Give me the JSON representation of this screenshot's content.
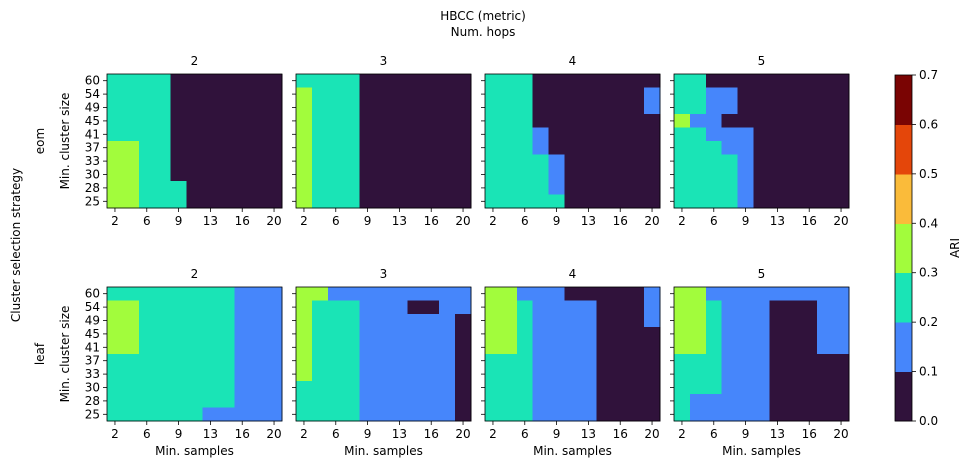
{
  "figure": {
    "title_line1": "HBCC (metric)",
    "title_line2": "Num. hops",
    "row_axis_label": "Cluster selection strategy"
  },
  "chart_data": {
    "type": "heatmap",
    "title": "HBCC (metric)",
    "subtitle": "Num. hops",
    "xlabel": "Min. samples",
    "ylabel": "Min. cluster size",
    "x_ticks": [
      "2",
      "6",
      "9",
      "13",
      "16",
      "20"
    ],
    "y_ticks": [
      "25",
      "28",
      "30",
      "33",
      "37",
      "41",
      "45",
      "49",
      "54",
      "60"
    ],
    "x_values": [
      2,
      4,
      6,
      8,
      9,
      11,
      13,
      15,
      16,
      18,
      20
    ],
    "y_values_bottom_to_top": [
      25,
      28,
      30,
      33,
      37,
      41,
      45,
      49,
      54,
      60
    ],
    "rows": [
      "eom",
      "leaf"
    ],
    "columns": [
      "2",
      "3",
      "4",
      "5"
    ],
    "colorbar": {
      "label": "ARI",
      "ticks": [
        "0.0",
        "0.1",
        "0.2",
        "0.3",
        "0.4",
        "0.5",
        "0.6",
        "0.7"
      ],
      "bounds": [
        0.0,
        0.1,
        0.2,
        0.3,
        0.4,
        0.5,
        0.6,
        0.7
      ],
      "colors": [
        "#30123b",
        "#4686fb",
        "#1ae4b6",
        "#a2fc3c",
        "#fabb3a",
        "#e4460a",
        "#7a0403"
      ]
    },
    "panels": [
      {
        "row": "eom",
        "hops": "2",
        "ari_bin_rows_top_to_bottom": [
          "22220000000",
          "22220000000",
          "22220000000",
          "22220000000",
          "22220000000",
          "33220000000",
          "33220000000",
          "33220000000",
          "33222000000",
          "33222000000"
        ]
      },
      {
        "row": "eom",
        "hops": "3",
        "ari_bin_rows_top_to_bottom": [
          "22220000000",
          "32220000000",
          "32220000000",
          "32220000000",
          "32220000000",
          "32220000000",
          "32220000000",
          "32220000000",
          "32220000000",
          "32220000000"
        ]
      },
      {
        "row": "eom",
        "hops": "4",
        "ari_bin_rows_top_to_bottom": [
          "22200000000",
          "22200000001",
          "22200000001",
          "22200000000",
          "22210000000",
          "22210000000",
          "22221000000",
          "22221000000",
          "22221000000",
          "22222000000"
        ]
      },
      {
        "row": "eom",
        "hops": "5",
        "ari_bin_rows_top_to_bottom": [
          "22000000000",
          "22110000000",
          "22110000000",
          "31100000000",
          "22111000000",
          "22211000000",
          "22221000000",
          "22221000000",
          "22221000000",
          "22221000000"
        ]
      },
      {
        "row": "leaf",
        "hops": "2",
        "ari_bin_rows_top_to_bottom": [
          "22222222111",
          "33222222111",
          "33222222111",
          "33222222111",
          "33222222111",
          "22222222111",
          "22222222111",
          "22222222111",
          "22222222111",
          "22222211111"
        ]
      },
      {
        "row": "leaf",
        "hops": "3",
        "ari_bin_rows_top_to_bottom": [
          "33111111111",
          "32221110011",
          "32221111110",
          "32221111110",
          "32221111110",
          "32221111110",
          "32221111110",
          "22221111110",
          "22221111110",
          "22221111110"
        ]
      },
      {
        "row": "leaf",
        "hops": "4",
        "ari_bin_rows_top_to_bottom": [
          "33111000001",
          "33211110001",
          "33211110001",
          "33211110000",
          "33211110000",
          "22211110000",
          "22211110000",
          "22211110000",
          "22211110000",
          "22211110000"
        ]
      },
      {
        "row": "leaf",
        "hops": "5",
        "ari_bin_rows_top_to_bottom": [
          "33111111111",
          "33211100011",
          "33211100011",
          "33211100011",
          "33211100011",
          "22211100000",
          "22211100000",
          "22211100000",
          "21111100000",
          "21111100000"
        ]
      }
    ]
  }
}
